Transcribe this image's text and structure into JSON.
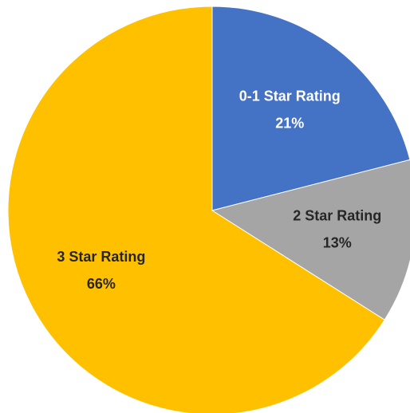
{
  "chart_data": {
    "type": "pie",
    "categories": [
      "0-1 Star Rating",
      "2 Star Rating",
      "3 Star Rating"
    ],
    "values": [
      21,
      13,
      66
    ],
    "value_labels": [
      "21%",
      "13%",
      "66%"
    ],
    "colors": [
      "#4472c4",
      "#a5a5a5",
      "#ffc000"
    ]
  }
}
